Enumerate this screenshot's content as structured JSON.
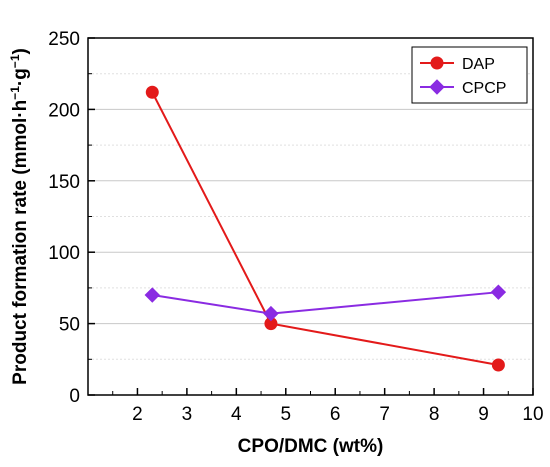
{
  "chart_data": {
    "type": "line",
    "xlabel": "CPO/DMC (wt%)",
    "ylabel_parts": {
      "base": "Product formation rate (mmol·h",
      "sup1": "−1",
      "mid": "·g",
      "sup2": "−1",
      "end": ")"
    },
    "xlim": [
      1,
      10
    ],
    "ylim": [
      0,
      250
    ],
    "x_ticks": [
      2,
      3,
      4,
      5,
      6,
      7,
      8,
      9,
      10
    ],
    "y_ticks": [
      0,
      50,
      100,
      150,
      200,
      250
    ],
    "grid": "horizontal dashed minor lines",
    "legend_position": "top-right",
    "series": [
      {
        "name": "DAP",
        "color": "#e31a1a",
        "marker": "circle",
        "x": [
          2.3,
          4.7,
          9.3
        ],
        "y": [
          212,
          50,
          21
        ]
      },
      {
        "name": "CPCP",
        "color": "#8a2be2",
        "marker": "diamond",
        "x": [
          2.3,
          4.7,
          9.3
        ],
        "y": [
          70,
          57,
          72
        ]
      }
    ]
  }
}
